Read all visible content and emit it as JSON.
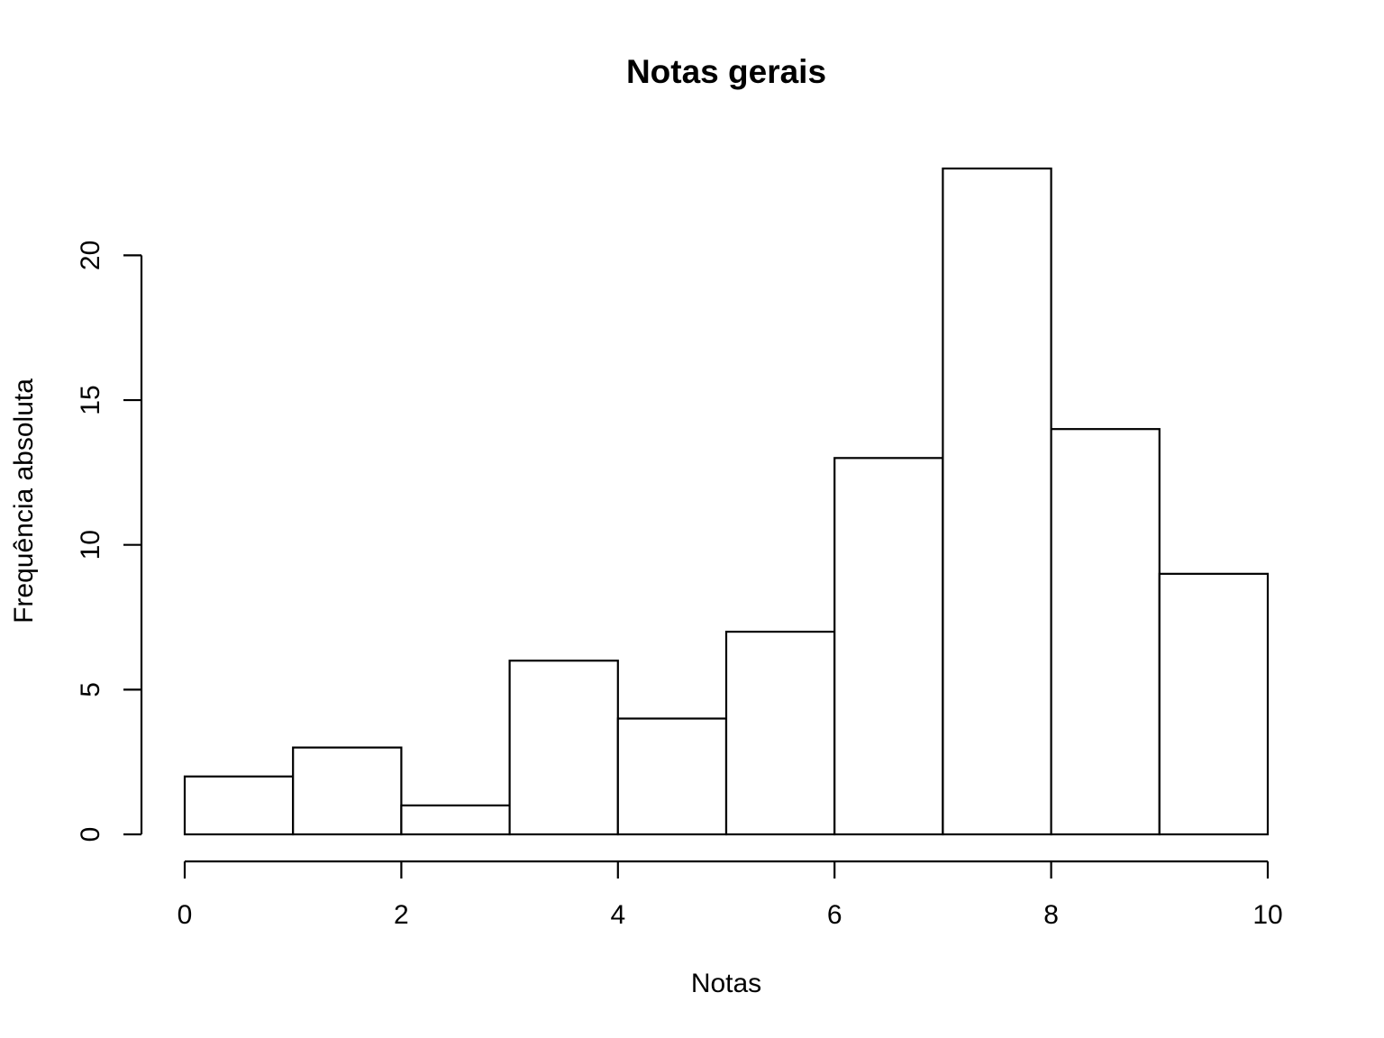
{
  "chart_data": {
    "type": "bar",
    "subtype": "histogram",
    "title": "Notas gerais",
    "xlabel": "Notas",
    "ylabel": "Frequência absoluta",
    "bins": [
      {
        "from": 0,
        "to": 1,
        "count": 2
      },
      {
        "from": 1,
        "to": 2,
        "count": 3
      },
      {
        "from": 2,
        "to": 3,
        "count": 1
      },
      {
        "from": 3,
        "to": 4,
        "count": 6
      },
      {
        "from": 4,
        "to": 5,
        "count": 4
      },
      {
        "from": 5,
        "to": 6,
        "count": 7
      },
      {
        "from": 6,
        "to": 7,
        "count": 13
      },
      {
        "from": 7,
        "to": 8,
        "count": 23
      },
      {
        "from": 8,
        "to": 9,
        "count": 14
      },
      {
        "from": 9,
        "to": 10,
        "count": 9
      }
    ],
    "xlim": [
      0,
      10
    ],
    "ylim": [
      0,
      23
    ],
    "x_ticks": [
      0,
      2,
      4,
      6,
      8,
      10
    ],
    "y_ticks": [
      0,
      5,
      10,
      15,
      20
    ],
    "x_tick_labels": [
      "0",
      "2",
      "4",
      "6",
      "8",
      "10"
    ],
    "y_tick_labels": [
      "0",
      "5",
      "10",
      "15",
      "20"
    ],
    "grid": false,
    "colors": {
      "bar_fill": "#ffffff",
      "bar_stroke": "#000000"
    }
  }
}
